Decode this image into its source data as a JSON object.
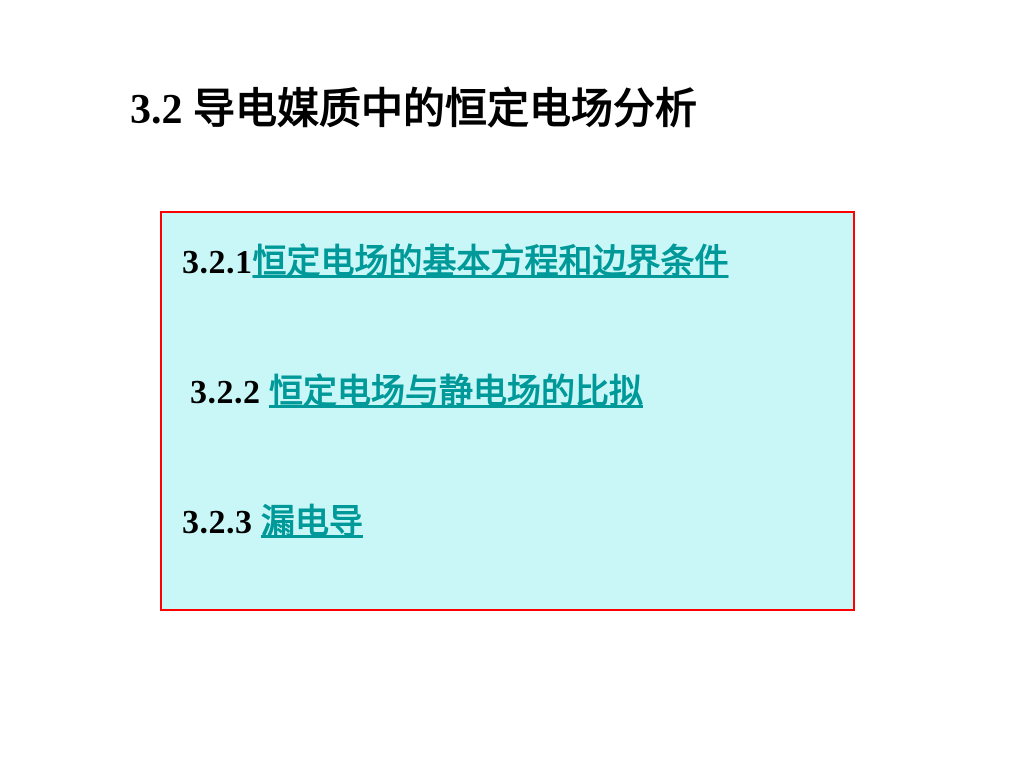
{
  "title": "3.2   导电媒质中的恒定电场分析",
  "box": {
    "background_color": "#c9f7f7",
    "border_color": "#ff0000",
    "border_width": 2
  },
  "items": [
    {
      "number": "3.2.1",
      "link_text": "恒定电场的基本方程和边界条件",
      "gap": ""
    },
    {
      "number": "3.2.2",
      "link_text": "恒定电场与静电场的比拟",
      "gap": "    "
    },
    {
      "number": "3.2.3",
      "link_text": "漏电导",
      "gap": "   "
    }
  ],
  "colors": {
    "text": "#000000",
    "link": "#009999",
    "background": "#ffffff"
  },
  "typography": {
    "title_fontsize": 42,
    "item_fontsize": 34,
    "font_weight": "bold",
    "font_family": "SimSun, Times New Roman, serif"
  }
}
